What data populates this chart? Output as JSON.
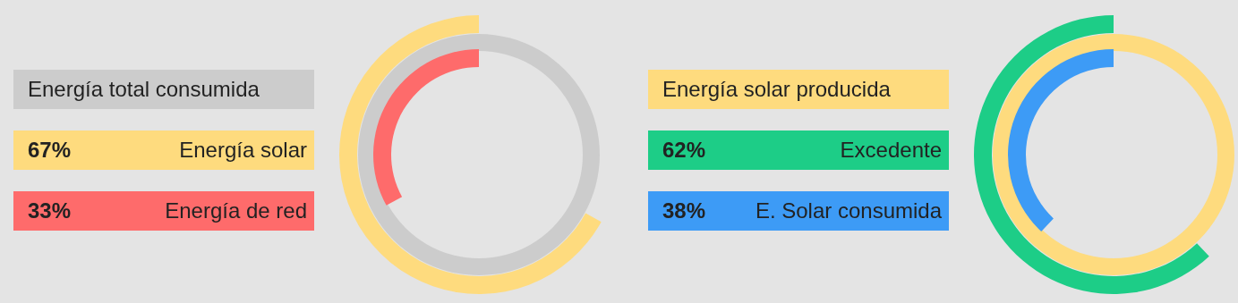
{
  "chart_data": [
    {
      "type": "other",
      "categories": [
        "Energía total consumida",
        "Energía solar",
        "Energía de red"
      ],
      "values": [
        null,
        67,
        33
      ],
      "value_labels": [
        null,
        "67%",
        "33%"
      ],
      "colors": [
        "#cccccc",
        "#fedb7e",
        "#fe6b6b"
      ]
    },
    {
      "type": "other",
      "categories": [
        "Energía solar producida",
        "Excedente",
        "E. Solar consumida"
      ],
      "values": [
        null,
        62,
        38
      ],
      "value_labels": [
        null,
        "62%",
        "38%"
      ],
      "colors": [
        "#fedb7e",
        "#1dcd87",
        "#3d9bf6"
      ]
    }
  ]
}
